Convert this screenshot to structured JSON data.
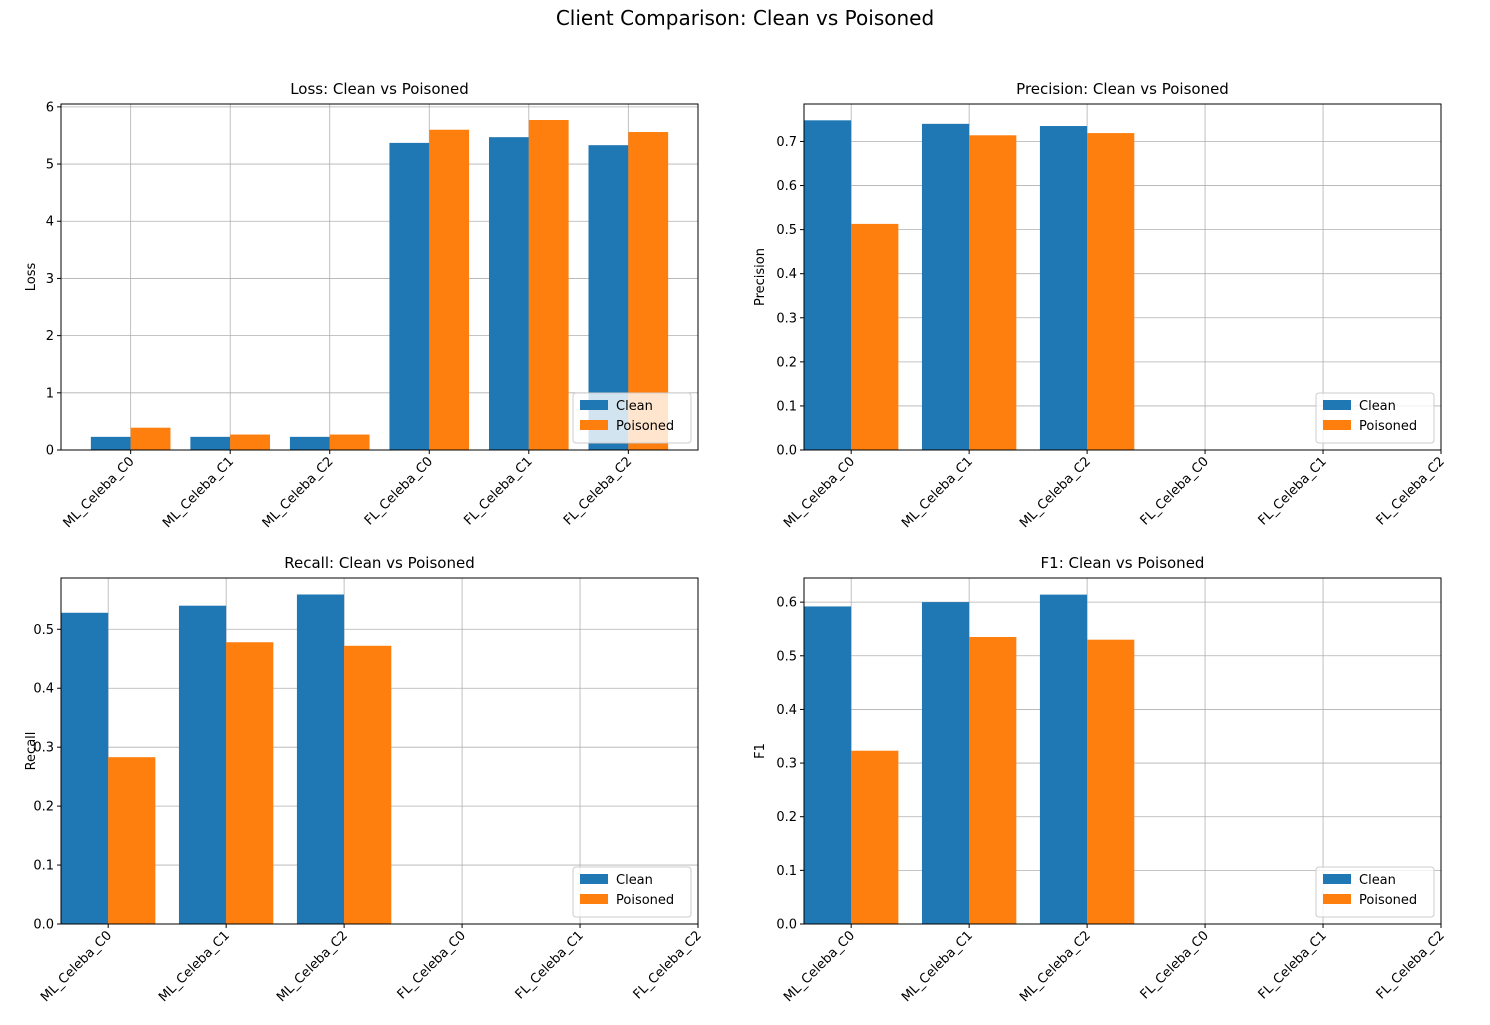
{
  "figure_title": "Client Comparison: Clean vs Poisoned",
  "colors": {
    "clean": "#1f77b4",
    "poisoned": "#ff7f0e"
  },
  "chart_data": [
    {
      "type": "bar",
      "title": "Loss: Clean vs Poisoned",
      "ylabel": "Loss",
      "xlabel": "",
      "categories": [
        "ML_Celeba_C0",
        "ML_Celeba_C1",
        "ML_Celeba_C2",
        "FL_Celeba_C0",
        "FL_Celeba_C1",
        "FL_Celeba_C2"
      ],
      "series": [
        {
          "name": "Clean",
          "values": [
            0.23,
            0.23,
            0.23,
            5.37,
            5.47,
            5.33
          ]
        },
        {
          "name": "Poisoned",
          "values": [
            0.39,
            0.27,
            0.27,
            5.6,
            5.77,
            5.56
          ]
        }
      ],
      "ylim": [
        0,
        6.05
      ],
      "yticks": [
        0,
        1,
        2,
        3,
        4,
        5,
        6
      ],
      "xlim": [
        -0.7,
        5.7
      ],
      "tick_decimals": 0,
      "grid": true,
      "legend": "lower-right"
    },
    {
      "type": "bar",
      "title": "Precision: Clean vs Poisoned",
      "ylabel": "Precision",
      "xlabel": "",
      "categories": [
        "ML_Celeba_C0",
        "ML_Celeba_C1",
        "ML_Celeba_C2",
        "FL_Celeba_C0",
        "FL_Celeba_C1",
        "FL_Celeba_C2"
      ],
      "series": [
        {
          "name": "Clean",
          "values": [
            0.748,
            0.74,
            0.735,
            0,
            0,
            0
          ]
        },
        {
          "name": "Poisoned",
          "values": [
            0.513,
            0.714,
            0.719,
            0,
            0,
            0
          ]
        }
      ],
      "ylim": [
        0,
        0.785
      ],
      "yticks": [
        0,
        0.1,
        0.2,
        0.3,
        0.4,
        0.5,
        0.6,
        0.7
      ],
      "xlim": [
        -0.4,
        5.0
      ],
      "tick_decimals": 1,
      "grid": true,
      "legend": "lower-right"
    },
    {
      "type": "bar",
      "title": "Recall: Clean vs Poisoned",
      "ylabel": "Recall",
      "xlabel": "",
      "categories": [
        "ML_Celeba_C0",
        "ML_Celeba_C1",
        "ML_Celeba_C2",
        "FL_Celeba_C0",
        "FL_Celeba_C1",
        "FL_Celeba_C2"
      ],
      "series": [
        {
          "name": "Clean",
          "values": [
            0.528,
            0.54,
            0.559,
            0,
            0,
            0
          ]
        },
        {
          "name": "Poisoned",
          "values": [
            0.283,
            0.478,
            0.472,
            0,
            0,
            0
          ]
        }
      ],
      "ylim": [
        0,
        0.587
      ],
      "yticks": [
        0,
        0.1,
        0.2,
        0.3,
        0.4,
        0.5
      ],
      "xlim": [
        -0.4,
        5.0
      ],
      "tick_decimals": 1,
      "grid": true,
      "legend": "lower-right"
    },
    {
      "type": "bar",
      "title": "F1: Clean vs Poisoned",
      "ylabel": "F1",
      "xlabel": "",
      "categories": [
        "ML_Celeba_C0",
        "ML_Celeba_C1",
        "ML_Celeba_C2",
        "FL_Celeba_C0",
        "FL_Celeba_C1",
        "FL_Celeba_C2"
      ],
      "series": [
        {
          "name": "Clean",
          "values": [
            0.592,
            0.6,
            0.614,
            0,
            0,
            0
          ]
        },
        {
          "name": "Poisoned",
          "values": [
            0.323,
            0.535,
            0.53,
            0,
            0,
            0
          ]
        }
      ],
      "ylim": [
        0,
        0.645
      ],
      "yticks": [
        0,
        0.1,
        0.2,
        0.3,
        0.4,
        0.5,
        0.6
      ],
      "xlim": [
        -0.4,
        5.0
      ],
      "tick_decimals": 1,
      "grid": true,
      "legend": "lower-right"
    }
  ]
}
